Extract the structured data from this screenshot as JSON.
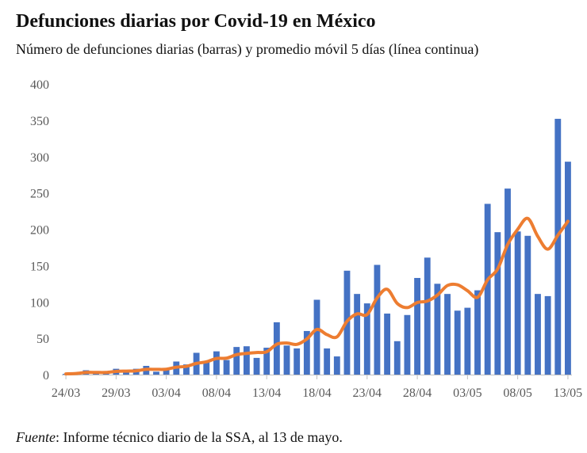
{
  "title": "Defunciones diarias por Covid-19 en México",
  "subtitle": "Número de defunciones diarias (barras) y promedio móvil 5 días (línea continua)",
  "source": {
    "label": "Fuente",
    "text": ": Informe técnico diario de la SSA, al 13 de mayo."
  },
  "colors": {
    "bar": "#4472C4",
    "line": "#ED7D31",
    "axis": "#BFBFBF",
    "tick_text": "#595959"
  },
  "chart_data": {
    "type": "bar",
    "title": "Defunciones diarias por Covid-19 en México",
    "subtitle": "Número de defunciones diarias (barras) y promedio móvil 5 días (línea continua)",
    "xlabel": "",
    "ylabel": "",
    "ylim": [
      0,
      400
    ],
    "yticks": [
      0,
      50,
      100,
      150,
      200,
      250,
      300,
      350,
      400
    ],
    "grid": false,
    "x_tick_labels": [
      "24/03",
      "29/03",
      "03/04",
      "08/04",
      "13/04",
      "18/04",
      "23/04",
      "28/04",
      "03/05",
      "08/05",
      "13/05"
    ],
    "x_tick_every": 5,
    "categories": [
      "24/03",
      "25/03",
      "26/03",
      "27/03",
      "28/03",
      "29/03",
      "30/03",
      "31/03",
      "01/04",
      "02/04",
      "03/04",
      "04/04",
      "05/04",
      "06/04",
      "07/04",
      "08/04",
      "09/04",
      "10/04",
      "11/04",
      "12/04",
      "13/04",
      "14/04",
      "15/04",
      "16/04",
      "17/04",
      "18/04",
      "19/04",
      "20/04",
      "21/04",
      "22/04",
      "23/04",
      "24/04",
      "25/04",
      "26/04",
      "27/04",
      "28/04",
      "29/04",
      "30/04",
      "01/05",
      "02/05",
      "03/05",
      "04/05",
      "05/05",
      "06/05",
      "07/05",
      "08/05",
      "09/05",
      "10/05",
      "11/05",
      "12/05",
      "13/05"
    ],
    "series": [
      {
        "name": "Defunciones diarias",
        "type": "bar",
        "values": [
          1,
          2,
          6,
          2,
          4,
          8,
          4,
          8,
          12,
          4,
          9,
          18,
          14,
          30,
          17,
          32,
          20,
          38,
          39,
          23,
          37,
          72,
          40,
          36,
          60,
          103,
          36,
          25,
          143,
          111,
          98,
          151,
          84,
          46,
          82,
          133,
          161,
          125,
          111,
          88,
          92,
          116,
          235,
          196,
          256,
          197,
          191,
          111,
          108,
          352,
          293
        ]
      },
      {
        "name": "Promedio móvil 5 días",
        "type": "line",
        "values": [
          1,
          1.5,
          3,
          3,
          3,
          4.4,
          4.8,
          5.2,
          7.2,
          7.2,
          7.4,
          10.2,
          11.4,
          15.4,
          17.6,
          22.2,
          22.6,
          27.4,
          29.2,
          30.4,
          31.4,
          41.8,
          43.4,
          41.6,
          49,
          62.2,
          55,
          52,
          73.4,
          83.6,
          82.6,
          105.6,
          117.4,
          98,
          92.2,
          99.2,
          101.2,
          109.4,
          122.6,
          123.6,
          115.4,
          106.4,
          130.4,
          145.4,
          179,
          200,
          215,
          190.2,
          172.6,
          191.8,
          211
        ]
      }
    ]
  }
}
